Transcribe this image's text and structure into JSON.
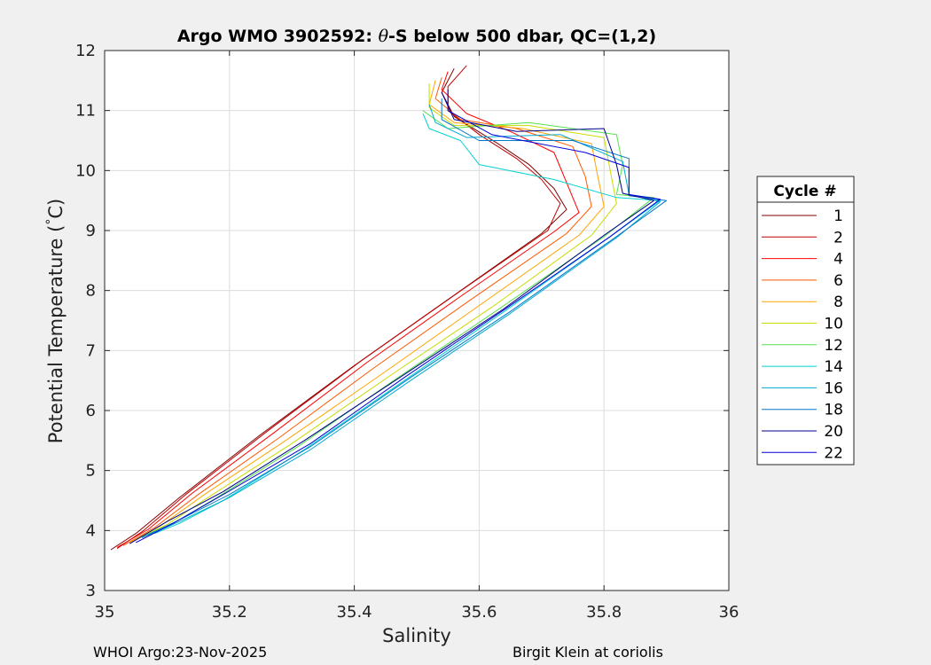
{
  "footer": {
    "left": "WHOI Argo:23-Nov-2025",
    "right": "Birgit Klein at coriolis"
  },
  "chart_data": {
    "type": "line",
    "title_prefix": "Argo WMO 3902592: ",
    "title_theta": "θ",
    "title_suffix": "-S below 500 dbar,  QC=(1,2)",
    "xlabel": "Salinity",
    "ylabel_part1": "Potential Temperature (",
    "ylabel_degree": "°",
    "ylabel_part2": "C)",
    "xlim": [
      35,
      36
    ],
    "ylim": [
      3,
      12
    ],
    "xticks": [
      "35",
      "35.2",
      "35.4",
      "35.6",
      "35.8",
      "36"
    ],
    "yticks": [
      "3",
      "4",
      "5",
      "6",
      "7",
      "8",
      "9",
      "10",
      "11",
      "12"
    ],
    "grid": true,
    "legend_title": "Cycle #",
    "legend_position": "right",
    "series": [
      {
        "name": "1",
        "color": "#800000",
        "points": [
          [
            35.01,
            3.68
          ],
          [
            35.05,
            3.95
          ],
          [
            35.12,
            4.55
          ],
          [
            35.25,
            5.6
          ],
          [
            35.4,
            6.75
          ],
          [
            35.55,
            7.85
          ],
          [
            35.7,
            8.95
          ],
          [
            35.74,
            9.35
          ],
          [
            35.72,
            9.7
          ],
          [
            35.68,
            10.1
          ],
          [
            35.63,
            10.45
          ],
          [
            35.56,
            10.9
          ],
          [
            35.54,
            11.3
          ],
          [
            35.56,
            11.7
          ]
        ]
      },
      {
        "name": "2",
        "color": "#c00000",
        "points": [
          [
            35.02,
            3.7
          ],
          [
            35.06,
            3.98
          ],
          [
            35.13,
            4.6
          ],
          [
            35.26,
            5.65
          ],
          [
            35.41,
            6.82
          ],
          [
            35.56,
            7.92
          ],
          [
            35.71,
            9.0
          ],
          [
            35.73,
            9.45
          ],
          [
            35.7,
            9.85
          ],
          [
            35.66,
            10.2
          ],
          [
            35.6,
            10.6
          ],
          [
            35.55,
            11.0
          ],
          [
            35.55,
            11.4
          ],
          [
            35.58,
            11.75
          ]
        ]
      },
      {
        "name": "4",
        "color": "#ff0000",
        "points": [
          [
            35.02,
            3.72
          ],
          [
            35.07,
            4.02
          ],
          [
            35.14,
            4.62
          ],
          [
            35.27,
            5.62
          ],
          [
            35.42,
            6.8
          ],
          [
            35.57,
            7.9
          ],
          [
            35.72,
            8.98
          ],
          [
            35.76,
            9.3
          ],
          [
            35.74,
            9.8
          ],
          [
            35.72,
            10.3
          ],
          [
            35.65,
            10.65
          ],
          [
            35.58,
            10.95
          ],
          [
            35.54,
            11.35
          ],
          [
            35.55,
            11.65
          ]
        ]
      },
      {
        "name": "6",
        "color": "#ff5a00",
        "points": [
          [
            35.03,
            3.75
          ],
          [
            35.08,
            4.05
          ],
          [
            35.15,
            4.6
          ],
          [
            35.28,
            5.55
          ],
          [
            35.43,
            6.7
          ],
          [
            35.58,
            7.8
          ],
          [
            35.74,
            8.95
          ],
          [
            35.78,
            9.4
          ],
          [
            35.77,
            9.9
          ],
          [
            35.75,
            10.4
          ],
          [
            35.66,
            10.7
          ],
          [
            35.57,
            10.85
          ],
          [
            35.53,
            11.2
          ],
          [
            35.54,
            11.55
          ]
        ]
      },
      {
        "name": "8",
        "color": "#ffa500",
        "points": [
          [
            35.04,
            3.8
          ],
          [
            35.09,
            4.08
          ],
          [
            35.16,
            4.6
          ],
          [
            35.29,
            5.5
          ],
          [
            35.45,
            6.65
          ],
          [
            35.6,
            7.75
          ],
          [
            35.76,
            8.92
          ],
          [
            35.8,
            9.4
          ],
          [
            35.79,
            9.9
          ],
          [
            35.78,
            10.45
          ],
          [
            35.67,
            10.7
          ],
          [
            35.56,
            10.8
          ],
          [
            35.52,
            11.1
          ],
          [
            35.53,
            11.5
          ]
        ]
      },
      {
        "name": "10",
        "color": "#c8dc00",
        "points": [
          [
            35.05,
            3.85
          ],
          [
            35.1,
            4.1
          ],
          [
            35.17,
            4.58
          ],
          [
            35.3,
            5.45
          ],
          [
            35.46,
            6.6
          ],
          [
            35.62,
            7.72
          ],
          [
            35.78,
            8.92
          ],
          [
            35.82,
            9.45
          ],
          [
            35.81,
            10.0
          ],
          [
            35.8,
            10.55
          ],
          [
            35.68,
            10.75
          ],
          [
            35.56,
            10.75
          ],
          [
            35.52,
            11.05
          ],
          [
            35.52,
            11.45
          ]
        ]
      },
      {
        "name": "12",
        "color": "#55e14b",
        "points": [
          [
            35.06,
            3.9
          ],
          [
            35.11,
            4.12
          ],
          [
            35.18,
            4.55
          ],
          [
            35.31,
            5.4
          ],
          [
            35.47,
            6.55
          ],
          [
            35.63,
            7.68
          ],
          [
            35.8,
            8.9
          ],
          [
            35.88,
            9.55
          ],
          [
            35.82,
            9.6
          ],
          [
            35.83,
            10.1
          ],
          [
            35.82,
            10.6
          ],
          [
            35.68,
            10.8
          ],
          [
            35.55,
            10.7
          ],
          [
            35.51,
            11.0
          ]
        ]
      },
      {
        "name": "14",
        "color": "#00d2d2",
        "points": [
          [
            35.08,
            3.95
          ],
          [
            35.12,
            4.12
          ],
          [
            35.19,
            4.5
          ],
          [
            35.32,
            5.35
          ],
          [
            35.48,
            6.5
          ],
          [
            35.64,
            7.65
          ],
          [
            35.81,
            8.9
          ],
          [
            35.89,
            9.5
          ],
          [
            35.82,
            9.55
          ],
          [
            35.72,
            9.85
          ],
          [
            35.6,
            10.1
          ],
          [
            35.57,
            10.5
          ],
          [
            35.52,
            10.7
          ],
          [
            35.51,
            10.95
          ]
        ]
      },
      {
        "name": "16",
        "color": "#00aad2",
        "points": [
          [
            35.07,
            3.92
          ],
          [
            35.12,
            4.15
          ],
          [
            35.2,
            4.55
          ],
          [
            35.33,
            5.35
          ],
          [
            35.49,
            6.5
          ],
          [
            35.65,
            7.62
          ],
          [
            35.82,
            8.88
          ],
          [
            35.89,
            9.48
          ],
          [
            35.84,
            9.6
          ],
          [
            35.83,
            10.15
          ],
          [
            35.73,
            10.6
          ],
          [
            35.58,
            10.55
          ],
          [
            35.53,
            10.8
          ],
          [
            35.52,
            11.1
          ]
        ]
      },
      {
        "name": "18",
        "color": "#0078c8",
        "points": [
          [
            35.06,
            3.88
          ],
          [
            35.12,
            4.18
          ],
          [
            35.2,
            4.6
          ],
          [
            35.33,
            5.4
          ],
          [
            35.49,
            6.55
          ],
          [
            35.65,
            7.65
          ],
          [
            35.82,
            8.9
          ],
          [
            35.9,
            9.5
          ],
          [
            35.84,
            9.58
          ],
          [
            35.84,
            10.2
          ],
          [
            35.75,
            10.5
          ],
          [
            35.6,
            10.5
          ],
          [
            35.54,
            10.85
          ],
          [
            35.54,
            11.2
          ]
        ]
      },
      {
        "name": "20",
        "color": "#00008c",
        "points": [
          [
            35.04,
            3.78
          ],
          [
            35.1,
            4.15
          ],
          [
            35.19,
            4.65
          ],
          [
            35.32,
            5.5
          ],
          [
            35.48,
            6.6
          ],
          [
            35.64,
            7.7
          ],
          [
            35.8,
            8.92
          ],
          [
            35.88,
            9.5
          ],
          [
            35.83,
            9.62
          ],
          [
            35.82,
            10.1
          ],
          [
            35.8,
            10.7
          ],
          [
            35.66,
            10.65
          ],
          [
            35.56,
            10.85
          ],
          [
            35.54,
            11.3
          ]
        ]
      },
      {
        "name": "22",
        "color": "#0000dc",
        "points": [
          [
            35.05,
            3.8
          ],
          [
            35.11,
            4.12
          ],
          [
            35.19,
            4.6
          ],
          [
            35.33,
            5.45
          ],
          [
            35.48,
            6.55
          ],
          [
            35.64,
            7.68
          ],
          [
            35.81,
            8.9
          ],
          [
            35.89,
            9.52
          ],
          [
            35.84,
            9.6
          ],
          [
            35.84,
            10.05
          ],
          [
            35.77,
            10.3
          ],
          [
            35.62,
            10.6
          ],
          [
            35.55,
            11.0
          ],
          [
            35.55,
            11.35
          ]
        ]
      }
    ]
  }
}
